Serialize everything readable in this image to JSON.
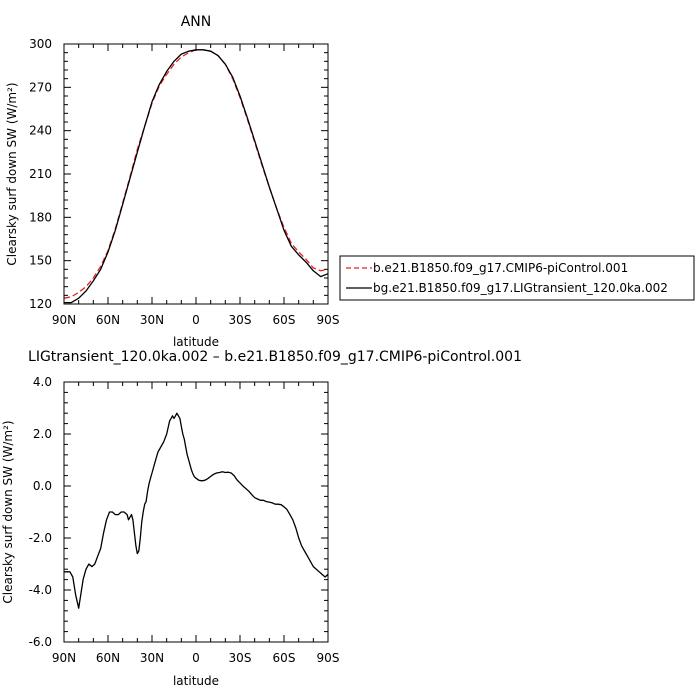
{
  "chart_data": [
    {
      "type": "line",
      "title": "ANN",
      "xlabel": "latitude",
      "ylabel": "Clearsky surf down SW (W/m²)",
      "xlim": [
        90,
        -90
      ],
      "ylim": [
        120,
        300
      ],
      "xticks": [
        90,
        60,
        30,
        0,
        -30,
        -60,
        -90
      ],
      "xticklabels": [
        "90N",
        "60N",
        "30N",
        "0",
        "30S",
        "60S",
        "90S"
      ],
      "yticks": [
        120,
        150,
        180,
        210,
        240,
        270,
        300
      ],
      "yticklabels": [
        "120",
        "150",
        "180",
        "210",
        "240",
        "270",
        "300"
      ],
      "legend_placement": "right",
      "series": [
        {
          "name": "b.e21.B1850.f09_g17.CMIP6-piControl.001",
          "color": "#e8202a",
          "style": "dashed",
          "x": [
            90,
            85,
            80,
            75,
            70,
            65,
            60,
            55,
            50,
            45,
            40,
            35,
            30,
            25,
            20,
            15,
            10,
            5,
            0,
            -5,
            -10,
            -15,
            -20,
            -25,
            -30,
            -35,
            -40,
            -45,
            -50,
            -55,
            -60,
            -65,
            -70,
            -75,
            -80,
            -85,
            -90
          ],
          "values": [
            124,
            125,
            128,
            132,
            138,
            146,
            157,
            172,
            190,
            208,
            227,
            243,
            259,
            271,
            279,
            286,
            291,
            294,
            296,
            296,
            295,
            292,
            286,
            276,
            263,
            248,
            232,
            216,
            201,
            186,
            173,
            162,
            156,
            151,
            145,
            143,
            144
          ]
        },
        {
          "name": "bg.e21.B1850.f09_g17.LIGtransient_120.0ka.002",
          "color": "#000000",
          "style": "solid",
          "x": [
            90,
            85,
            80,
            75,
            70,
            65,
            60,
            55,
            50,
            45,
            40,
            35,
            30,
            25,
            20,
            15,
            10,
            5,
            0,
            -5,
            -10,
            -15,
            -20,
            -25,
            -30,
            -35,
            -40,
            -45,
            -50,
            -55,
            -60,
            -65,
            -70,
            -75,
            -80,
            -85,
            -90
          ],
          "values": [
            121,
            121,
            124,
            129,
            136,
            144,
            156,
            171,
            189,
            207,
            225,
            243,
            260,
            272,
            281,
            288,
            293,
            295,
            296,
            296,
            295,
            292,
            286,
            277,
            264,
            249,
            233,
            217,
            201,
            186,
            171,
            160,
            154,
            149,
            143,
            139,
            141
          ]
        }
      ]
    },
    {
      "type": "line",
      "title": "LIGtransient_120.0ka.002 – b.e21.B1850.f09_g17.CMIP6-piControl.001",
      "xlabel": "latitude",
      "ylabel": "Clearsky surf down SW (W/m²)",
      "xlim": [
        90,
        -90
      ],
      "ylim": [
        -6.0,
        4.0
      ],
      "xticks": [
        90,
        60,
        30,
        0,
        -30,
        -60,
        -90
      ],
      "xticklabels": [
        "90N",
        "60N",
        "30N",
        "0",
        "30S",
        "60S",
        "90S"
      ],
      "yticks": [
        -6.0,
        -4.0,
        -2.0,
        0.0,
        2.0,
        4.0
      ],
      "yticklabels": [
        "-6.0",
        "-4.0",
        "-2.0",
        "0.0",
        "2.0",
        "4.0"
      ],
      "series": [
        {
          "color": "#000000",
          "style": "solid",
          "x": [
            90,
            86,
            84,
            82,
            80,
            77,
            75,
            73,
            71,
            69,
            67,
            65,
            63,
            61,
            59,
            57,
            55,
            53,
            51,
            49,
            47,
            46,
            45,
            44,
            43,
            42,
            41,
            40,
            39,
            38,
            37,
            36,
            35,
            34,
            33,
            32,
            31,
            30,
            28,
            26,
            24,
            22,
            20,
            18,
            17,
            16,
            15,
            14,
            13,
            12,
            11,
            10,
            9,
            8,
            7,
            6,
            5,
            4,
            3,
            2,
            1,
            0,
            -2,
            -4,
            -6,
            -8,
            -10,
            -12,
            -14,
            -16,
            -18,
            -20,
            -22,
            -24,
            -26,
            -28,
            -30,
            -32,
            -34,
            -36,
            -38,
            -40,
            -42,
            -44,
            -46,
            -48,
            -50,
            -52,
            -54,
            -56,
            -58,
            -60,
            -62,
            -64,
            -66,
            -68,
            -70,
            -72,
            -74,
            -76,
            -78,
            -80,
            -82,
            -84,
            -86,
            -88,
            -90
          ],
          "values": [
            -3.3,
            -3.3,
            -3.5,
            -4.2,
            -4.7,
            -3.6,
            -3.2,
            -3.0,
            -3.1,
            -3.0,
            -2.7,
            -2.4,
            -1.8,
            -1.3,
            -1.0,
            -1.0,
            -1.1,
            -1.1,
            -1.0,
            -1.0,
            -1.1,
            -1.3,
            -1.2,
            -1.1,
            -1.3,
            -1.8,
            -2.3,
            -2.6,
            -2.5,
            -2.0,
            -1.4,
            -1.0,
            -0.7,
            -0.6,
            -0.2,
            0.1,
            0.3,
            0.5,
            0.9,
            1.3,
            1.5,
            1.7,
            2.0,
            2.5,
            2.6,
            2.7,
            2.6,
            2.7,
            2.8,
            2.7,
            2.6,
            2.3,
            2.0,
            1.8,
            1.5,
            1.2,
            1.0,
            0.8,
            0.6,
            0.45,
            0.35,
            0.3,
            0.22,
            0.2,
            0.22,
            0.28,
            0.37,
            0.45,
            0.5,
            0.52,
            0.55,
            0.52,
            0.53,
            0.5,
            0.4,
            0.23,
            0.12,
            0.0,
            -0.1,
            -0.2,
            -0.33,
            -0.45,
            -0.5,
            -0.55,
            -0.55,
            -0.6,
            -0.62,
            -0.65,
            -0.7,
            -0.7,
            -0.72,
            -0.8,
            -0.9,
            -1.1,
            -1.3,
            -1.6,
            -2.0,
            -2.3,
            -2.5,
            -2.7,
            -2.9,
            -3.1,
            -3.2,
            -3.3,
            -3.4,
            -3.5,
            -3.4
          ]
        }
      ]
    }
  ],
  "legend": {
    "entries": [
      "b.e21.B1850.f09_g17.CMIP6-piControl.001",
      "bg.e21.B1850.f09_g17.LIGtransient_120.0ka.002"
    ]
  }
}
